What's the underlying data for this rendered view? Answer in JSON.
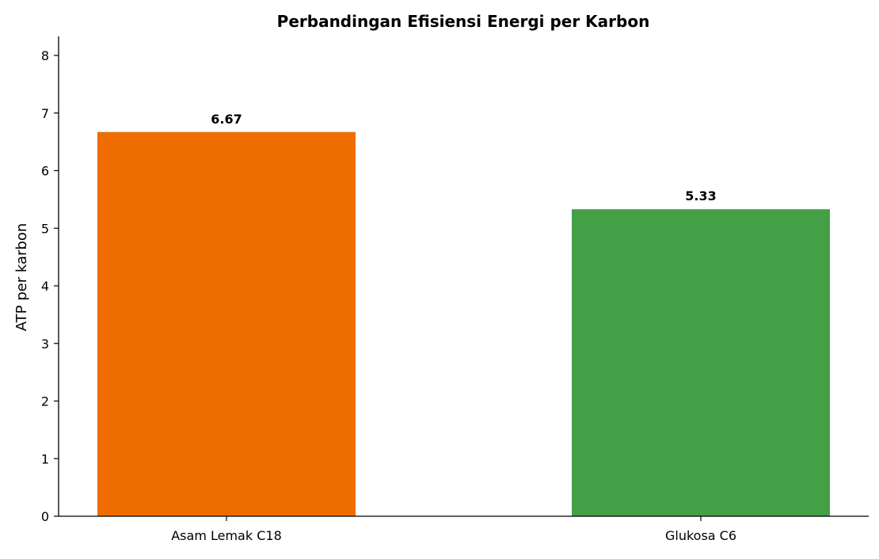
{
  "chart_data": {
    "type": "bar",
    "title": "Perbandingan Efisiensi Energi per Karbon",
    "xlabel": "",
    "ylabel": "ATP per karbon",
    "categories": [
      "Asam Lemak C18",
      "Glukosa C6"
    ],
    "values": [
      6.67,
      5.33
    ],
    "data_labels": [
      "6.67",
      "5.33"
    ],
    "colors": [
      "#ef6c00",
      "#43a047"
    ],
    "ylim": [
      0,
      8.33
    ],
    "yticks": [
      0,
      1,
      2,
      3,
      4,
      5,
      6,
      7,
      8
    ],
    "grid": false,
    "legend": "none"
  }
}
